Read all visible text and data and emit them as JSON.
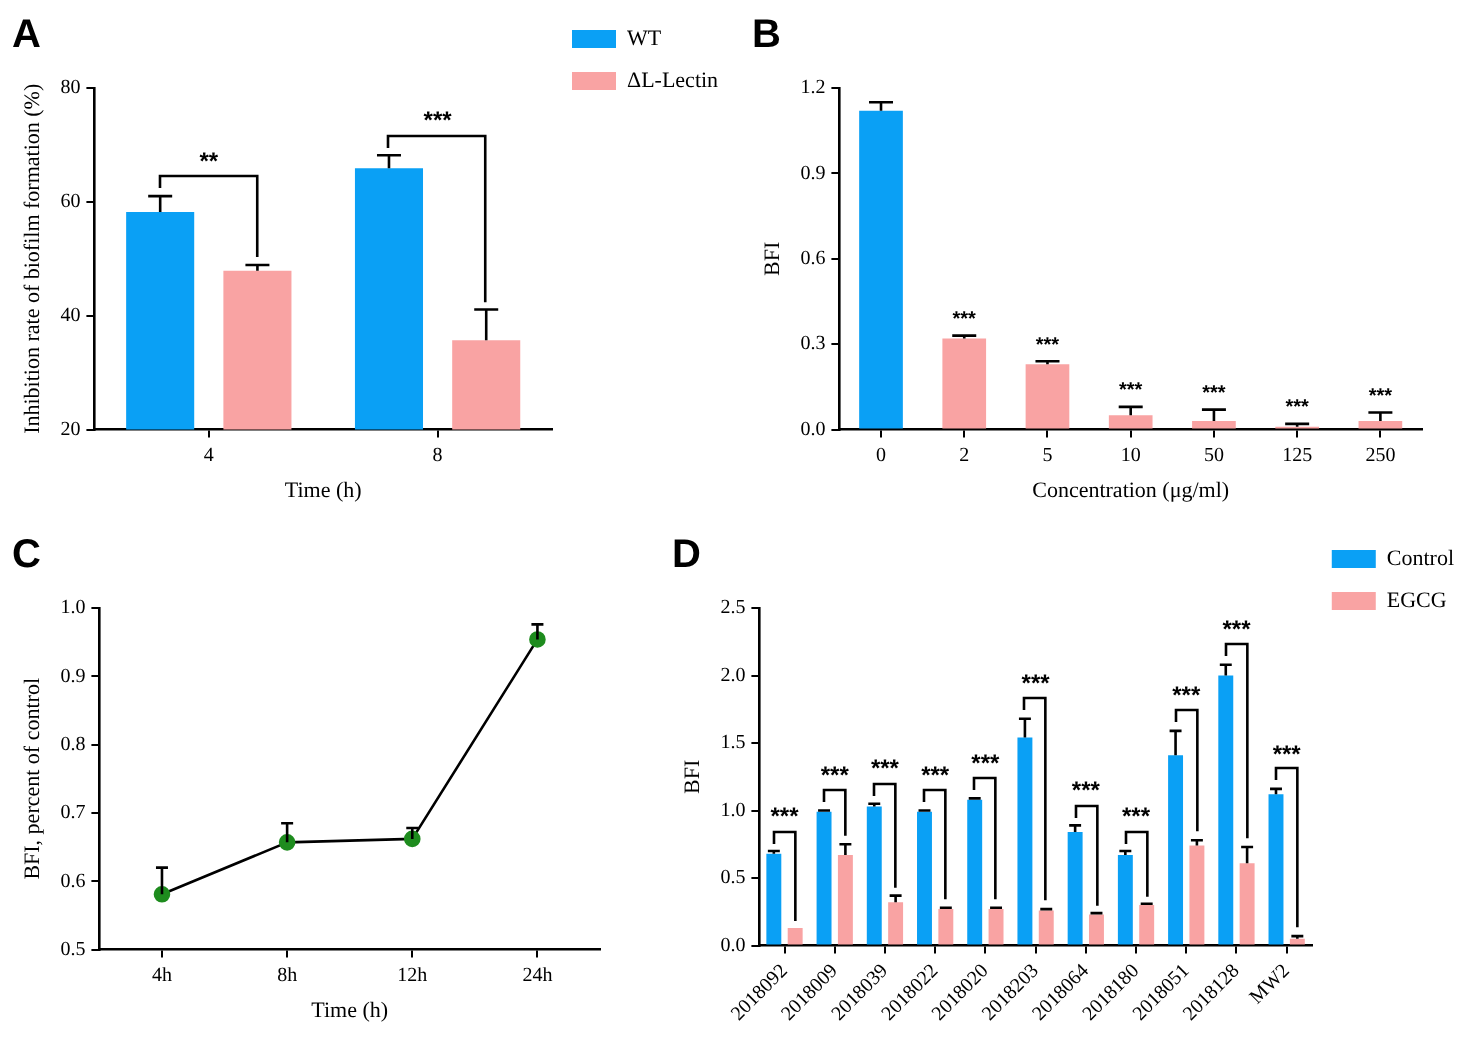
{
  "chart_data": [
    {
      "type": "bar",
      "title": "A",
      "xlabel": "Time (h)",
      "ylabel": "Inhibition rate of biofilm formation (%)",
      "categories": [
        "4",
        "8"
      ],
      "ylim": [
        20,
        80
      ],
      "yticks": [
        20,
        40,
        60,
        80
      ],
      "legend": "top right",
      "series": [
        {
          "name": "WT",
          "color": "#0aa0f5",
          "values": [
            58.2,
            65.9
          ],
          "errors": [
            [
              58.2,
              61
            ],
            [
              65.9,
              68.2
            ]
          ]
        },
        {
          "name": "ΔL-Lectin",
          "color": "#f9a3a3",
          "values": [
            47.9,
            35.7
          ],
          "errors": [
            [
              47.9,
              48.9
            ],
            [
              35.7,
              41.1
            ]
          ]
        }
      ],
      "annotations": [
        "**",
        "***"
      ]
    },
    {
      "type": "bar",
      "title": "B",
      "xlabel": "Concentration (μg/ml)",
      "ylabel": "BFI",
      "categories": [
        "0",
        "2",
        "5",
        "10",
        "50",
        "125",
        "250"
      ],
      "ylim": [
        0,
        1.2
      ],
      "yticks": [
        {
          "value": 0,
          "label": "0.0"
        },
        {
          "value": 0.3,
          "label": "0.3"
        },
        {
          "value": 0.6,
          "label": "0.6"
        },
        {
          "value": 0.9,
          "label": "0.9"
        },
        {
          "value": 1.2,
          "label": "1.2"
        }
      ],
      "values": [
        1.12,
        0.32,
        0.23,
        0.05,
        0.03,
        0.01,
        0.03
      ],
      "colors": [
        "#0aa0f5",
        "#f9a3a3",
        "#f9a3a3",
        "#f9a3a3",
        "#f9a3a3",
        "#f9a3a3",
        "#f9a3a3"
      ],
      "errors": [
        [
          1.12,
          1.15
        ],
        [
          0.32,
          0.33
        ],
        [
          0.23,
          0.24
        ],
        [
          0.05,
          0.08
        ],
        [
          0.03,
          0.07
        ],
        [
          0.01,
          0.02
        ],
        [
          0.03,
          0.06
        ]
      ],
      "annotations": [
        "***",
        "***",
        "***",
        "***",
        "***",
        "***"
      ]
    },
    {
      "type": "line",
      "title": "C",
      "xlabel": "Time (h)",
      "ylabel": "BFI, percent of control",
      "categories": [
        "4h",
        "8h",
        "12h",
        "24h"
      ],
      "ylim": [
        0.5,
        1.0
      ],
      "yticks": [
        0.5,
        0.6,
        0.7,
        0.8,
        0.9,
        {
          "value": 1.0,
          "label": "1.0"
        }
      ],
      "marker": "circle",
      "color": "#1e8c1e",
      "values": [
        0.581,
        0.657,
        0.662,
        0.954
      ],
      "errors": [
        [
          0.581,
          0.62
        ],
        [
          0.657,
          0.685
        ],
        [
          0.662,
          0.678
        ],
        [
          0.954,
          0.976
        ]
      ]
    },
    {
      "type": "bar",
      "title": "D",
      "ylabel": "BFI",
      "categories": [
        "2018092",
        "2018009",
        "2018039",
        "2018022",
        "2018020",
        "2018203",
        "2018064",
        "2018180",
        "2018051",
        "2018128",
        "MW2"
      ],
      "ylim": [
        0,
        2.5
      ],
      "yticks": [
        {
          "value": 0,
          "label": "0.0"
        },
        0.5,
        {
          "value": 1,
          "label": "1.0"
        },
        1.5,
        {
          "value": 2,
          "label": "2.0"
        },
        2.5
      ],
      "legend": "top right",
      "series": [
        {
          "name": "Control",
          "color": "#0aa0f5",
          "values": [
            0.68,
            0.99,
            1.03,
            0.99,
            1.08,
            1.54,
            0.84,
            0.67,
            1.41,
            2.0,
            1.12
          ],
          "errors": [
            [
              0.68,
              0.7
            ],
            [
              0.99,
              1.0
            ],
            [
              1.03,
              1.05
            ],
            [
              0.99,
              1.0
            ],
            [
              1.08,
              1.09
            ],
            [
              1.54,
              1.68
            ],
            [
              0.84,
              0.89
            ],
            [
              0.67,
              0.7
            ],
            [
              1.41,
              1.59
            ],
            [
              2.0,
              2.08
            ],
            [
              1.12,
              1.16
            ]
          ]
        },
        {
          "name": "EGCG",
          "color": "#f9a3a3",
          "values": [
            0.13,
            0.67,
            0.32,
            0.27,
            0.27,
            0.26,
            0.23,
            0.3,
            0.74,
            0.61,
            0.05
          ],
          "errors": [
            null,
            [
              0.67,
              0.75
            ],
            [
              0.32,
              0.37
            ],
            [
              0.27,
              0.28
            ],
            [
              0.27,
              0.28
            ],
            [
              0.26,
              0.27
            ],
            [
              0.23,
              0.24
            ],
            [
              0.3,
              0.31
            ],
            [
              0.74,
              0.78
            ],
            [
              0.61,
              0.73
            ],
            [
              0.05,
              0.07
            ]
          ]
        }
      ],
      "annotations": [
        "***",
        "***",
        "***",
        "***",
        "***",
        "***",
        "***",
        "***",
        "***",
        "***",
        "***"
      ]
    }
  ]
}
